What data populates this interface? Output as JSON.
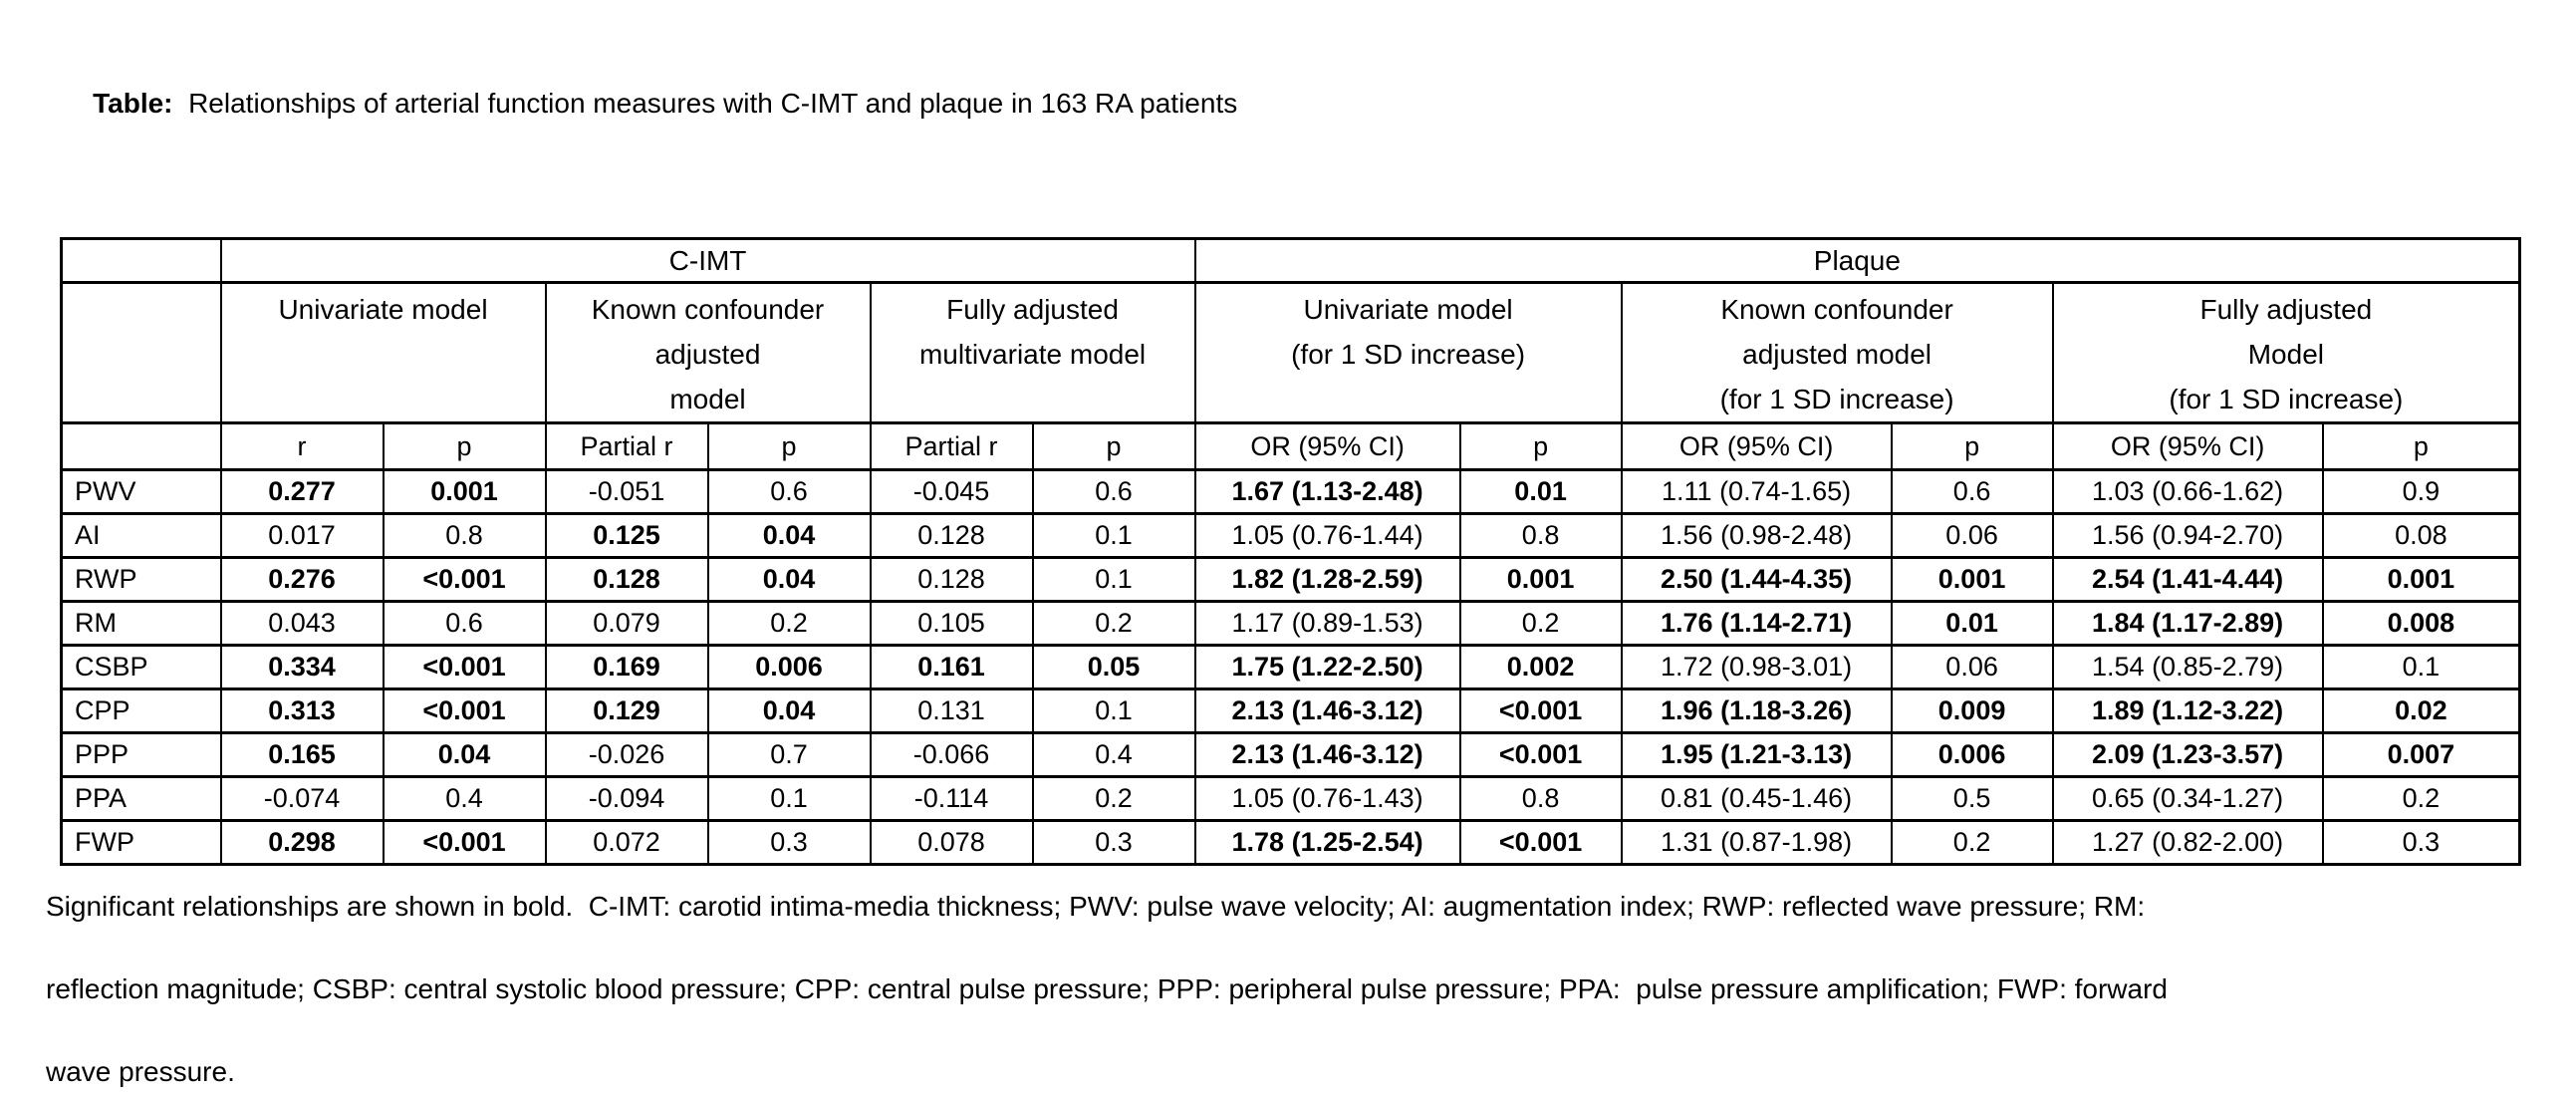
{
  "title": {
    "label": "Table:",
    "text": "  Relationships of arterial function measures with C-IMT and plaque in 163 RA patients"
  },
  "table": {
    "group_headers": {
      "cimt": "C-IMT",
      "plaque": "Plaque"
    },
    "model_headers": {
      "cimt_univariate": "Univariate model",
      "cimt_known_confounder": "Known confounder\nadjusted\nmodel",
      "cimt_fully_adjusted": "Fully adjusted\nmultivariate model",
      "plaque_univariate": "Univariate model\n(for 1 SD increase)",
      "plaque_known_confounder": "Known confounder\nadjusted model\n(for 1 SD increase)",
      "plaque_fully_adjusted": "Fully adjusted\nModel\n(for 1 SD increase)"
    },
    "stat_headers": [
      "r",
      "p",
      "Partial r",
      "p",
      "Partial r",
      "p",
      "OR (95% CI)",
      "p",
      "OR (95% CI)",
      "p",
      "OR (95% CI)",
      "p"
    ],
    "rows": [
      {
        "label": "PWV",
        "cells": [
          {
            "v": "0.277",
            "b": true
          },
          {
            "v": "0.001",
            "b": true
          },
          {
            "v": "-0.051",
            "b": false
          },
          {
            "v": "0.6",
            "b": false
          },
          {
            "v": "-0.045",
            "b": false
          },
          {
            "v": "0.6",
            "b": false
          },
          {
            "v": "1.67 (1.13-2.48)",
            "b": true
          },
          {
            "v": "0.01",
            "b": true
          },
          {
            "v": "1.11 (0.74-1.65)",
            "b": false
          },
          {
            "v": "0.6",
            "b": false
          },
          {
            "v": "1.03 (0.66-1.62)",
            "b": false
          },
          {
            "v": "0.9",
            "b": false
          }
        ]
      },
      {
        "label": "AI",
        "cells": [
          {
            "v": "0.017",
            "b": false
          },
          {
            "v": "0.8",
            "b": false
          },
          {
            "v": "0.125",
            "b": true
          },
          {
            "v": "0.04",
            "b": true
          },
          {
            "v": "0.128",
            "b": false
          },
          {
            "v": "0.1",
            "b": false
          },
          {
            "v": "1.05 (0.76-1.44)",
            "b": false
          },
          {
            "v": "0.8",
            "b": false
          },
          {
            "v": "1.56 (0.98-2.48)",
            "b": false
          },
          {
            "v": "0.06",
            "b": false
          },
          {
            "v": "1.56 (0.94-2.70)",
            "b": false
          },
          {
            "v": "0.08",
            "b": false
          }
        ]
      },
      {
        "label": "RWP",
        "cells": [
          {
            "v": "0.276",
            "b": true
          },
          {
            "v": "<0.001",
            "b": true
          },
          {
            "v": "0.128",
            "b": true
          },
          {
            "v": "0.04",
            "b": true
          },
          {
            "v": "0.128",
            "b": false
          },
          {
            "v": "0.1",
            "b": false
          },
          {
            "v": "1.82 (1.28-2.59)",
            "b": true
          },
          {
            "v": "0.001",
            "b": true
          },
          {
            "v": "2.50 (1.44-4.35)",
            "b": true
          },
          {
            "v": "0.001",
            "b": true
          },
          {
            "v": "2.54 (1.41-4.44)",
            "b": true
          },
          {
            "v": "0.001",
            "b": true
          }
        ]
      },
      {
        "label": "RM",
        "cells": [
          {
            "v": "0.043",
            "b": false
          },
          {
            "v": "0.6",
            "b": false
          },
          {
            "v": "0.079",
            "b": false
          },
          {
            "v": "0.2",
            "b": false
          },
          {
            "v": "0.105",
            "b": false
          },
          {
            "v": "0.2",
            "b": false
          },
          {
            "v": "1.17 (0.89-1.53)",
            "b": false
          },
          {
            "v": "0.2",
            "b": false
          },
          {
            "v": "1.76 (1.14-2.71)",
            "b": true
          },
          {
            "v": "0.01",
            "b": true
          },
          {
            "v": "1.84 (1.17-2.89)",
            "b": true
          },
          {
            "v": "0.008",
            "b": true
          }
        ]
      },
      {
        "label": "CSBP",
        "cells": [
          {
            "v": "0.334",
            "b": true
          },
          {
            "v": "<0.001",
            "b": true
          },
          {
            "v": "0.169",
            "b": true
          },
          {
            "v": "0.006",
            "b": true
          },
          {
            "v": "0.161",
            "b": true
          },
          {
            "v": "0.05",
            "b": true
          },
          {
            "v": "1.75 (1.22-2.50)",
            "b": true
          },
          {
            "v": "0.002",
            "b": true
          },
          {
            "v": "1.72 (0.98-3.01)",
            "b": false
          },
          {
            "v": "0.06",
            "b": false
          },
          {
            "v": "1.54 (0.85-2.79)",
            "b": false
          },
          {
            "v": "0.1",
            "b": false
          }
        ]
      },
      {
        "label": "CPP",
        "cells": [
          {
            "v": "0.313",
            "b": true
          },
          {
            "v": "<0.001",
            "b": true
          },
          {
            "v": "0.129",
            "b": true
          },
          {
            "v": "0.04",
            "b": true
          },
          {
            "v": "0.131",
            "b": false
          },
          {
            "v": "0.1",
            "b": false
          },
          {
            "v": "2.13 (1.46-3.12)",
            "b": true
          },
          {
            "v": "<0.001",
            "b": true
          },
          {
            "v": "1.96 (1.18-3.26)",
            "b": true
          },
          {
            "v": "0.009",
            "b": true
          },
          {
            "v": "1.89 (1.12-3.22)",
            "b": true
          },
          {
            "v": "0.02",
            "b": true
          }
        ]
      },
      {
        "label": "PPP",
        "cells": [
          {
            "v": "0.165",
            "b": true
          },
          {
            "v": "0.04",
            "b": true
          },
          {
            "v": "-0.026",
            "b": false
          },
          {
            "v": "0.7",
            "b": false
          },
          {
            "v": "-0.066",
            "b": false
          },
          {
            "v": "0.4",
            "b": false
          },
          {
            "v": "2.13 (1.46-3.12)",
            "b": true
          },
          {
            "v": "<0.001",
            "b": true
          },
          {
            "v": "1.95 (1.21-3.13)",
            "b": true
          },
          {
            "v": "0.006",
            "b": true
          },
          {
            "v": "2.09 (1.23-3.57)",
            "b": true
          },
          {
            "v": "0.007",
            "b": true
          }
        ]
      },
      {
        "label": "PPA",
        "cells": [
          {
            "v": "-0.074",
            "b": false
          },
          {
            "v": "0.4",
            "b": false
          },
          {
            "v": "-0.094",
            "b": false
          },
          {
            "v": "0.1",
            "b": false
          },
          {
            "v": "-0.114",
            "b": false
          },
          {
            "v": "0.2",
            "b": false
          },
          {
            "v": "1.05 (0.76-1.43)",
            "b": false
          },
          {
            "v": "0.8",
            "b": false
          },
          {
            "v": "0.81 (0.45-1.46)",
            "b": false
          },
          {
            "v": "0.5",
            "b": false
          },
          {
            "v": "0.65 (0.34-1.27)",
            "b": false
          },
          {
            "v": "0.2",
            "b": false
          }
        ]
      },
      {
        "label": "FWP",
        "cells": [
          {
            "v": "0.298",
            "b": true
          },
          {
            "v": "<0.001",
            "b": true
          },
          {
            "v": "0.072",
            "b": false
          },
          {
            "v": "0.3",
            "b": false
          },
          {
            "v": "0.078",
            "b": false
          },
          {
            "v": "0.3",
            "b": false
          },
          {
            "v": "1.78 (1.25-2.54)",
            "b": true
          },
          {
            "v": "<0.001",
            "b": true
          },
          {
            "v": "1.31 (0.87-1.98)",
            "b": false
          },
          {
            "v": "0.2",
            "b": false
          },
          {
            "v": "1.27 (0.82-2.00)",
            "b": false
          },
          {
            "v": "0.3",
            "b": false
          }
        ]
      }
    ]
  },
  "footnote": {
    "line1": "Significant relationships are shown in bold.  C-IMT: carotid intima-media thickness; PWV: pulse wave velocity; AI: augmentation index; RWP: reflected wave pressure; RM:",
    "line2": "reflection magnitude; CSBP: central systolic blood pressure; CPP: central pulse pressure; PPP: peripheral pulse pressure; PPA:  pulse pressure amplification; FWP: forward",
    "line3": "wave pressure."
  }
}
